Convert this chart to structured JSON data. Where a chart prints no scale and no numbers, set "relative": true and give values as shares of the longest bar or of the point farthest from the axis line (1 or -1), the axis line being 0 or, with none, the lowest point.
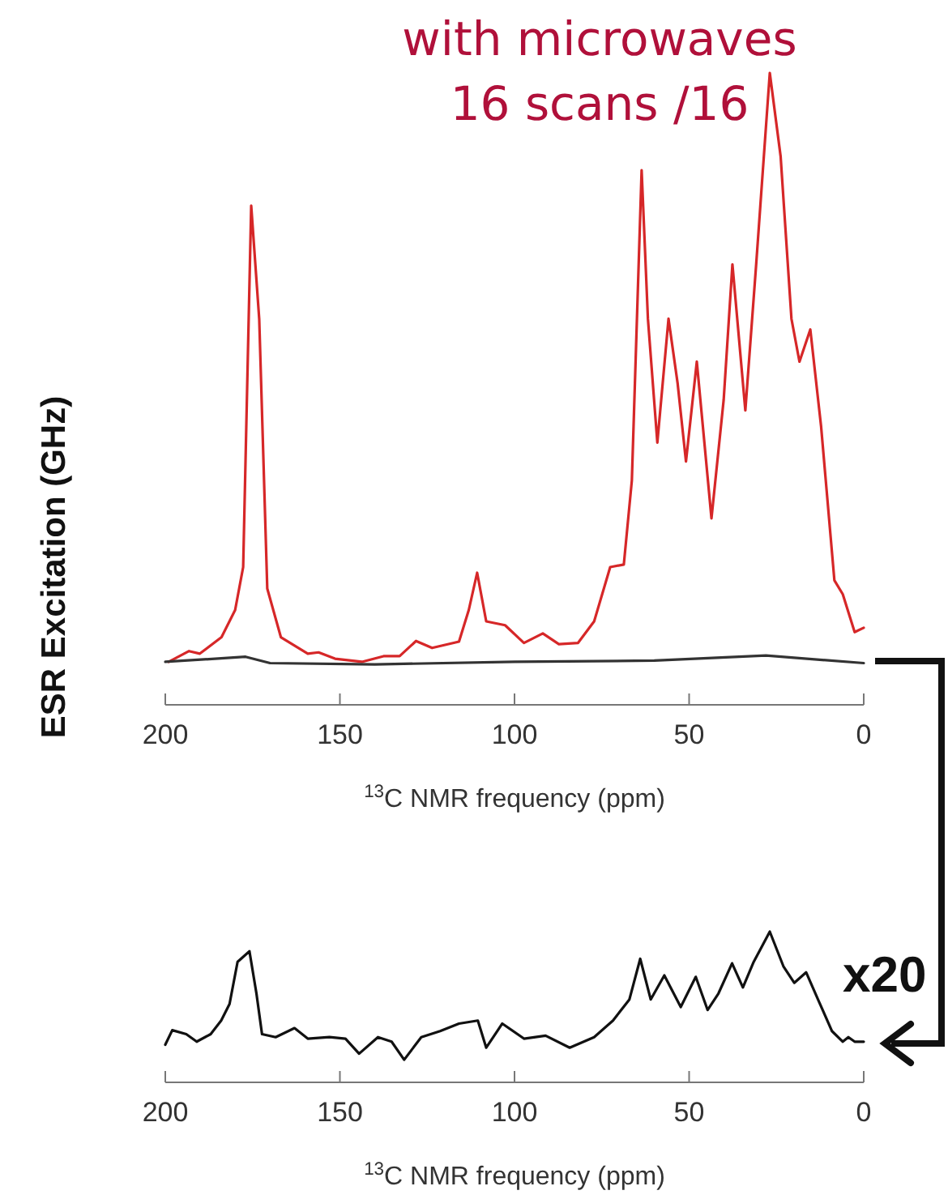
{
  "chart_data": [
    {
      "type": "line",
      "title": "with microwaves\n16 scans /16",
      "ylabel": "ESR Excitation (GHz)",
      "xlabel": "$^{13}$C NMR frequency  (ppm)",
      "relative": true,
      "xlim": [
        200,
        0
      ],
      "xticks": [
        200,
        150,
        100,
        50,
        0
      ],
      "series": [
        {
          "color": "#d62728",
          "x": [
            199,
            193.2,
            190.1,
            183.9,
            180,
            177.7,
            175.4,
            173.1,
            170.8,
            166.9,
            159.2,
            156.1,
            151.4,
            143.7,
            137.5,
            132.9,
            128.2,
            123.6,
            115.9,
            113.1,
            110.7,
            108.1,
            102.7,
            97.3,
            91.9,
            87.3,
            81.8,
            77.2,
            72.6,
            68.7,
            66.4,
            63.6,
            61.8,
            59.1,
            55.9,
            53.3,
            50.9,
            47.8,
            43.6,
            40.1,
            37.6,
            33.9,
            30.8,
            26.9,
            23.8,
            20.7,
            18.4,
            15.3,
            12.2,
            8.4,
            6,
            2.6,
            0
          ],
          "values": [
            0.068,
            0.085,
            0.081,
            0.107,
            0.15,
            0.218,
            0.79,
            0.61,
            0.184,
            0.107,
            0.081,
            0.083,
            0.073,
            0.068,
            0.077,
            0.077,
            0.101,
            0.09,
            0.1,
            0.15,
            0.209,
            0.132,
            0.126,
            0.098,
            0.113,
            0.096,
            0.098,
            0.132,
            0.218,
            0.222,
            0.355,
            0.846,
            0.611,
            0.415,
            0.611,
            0.509,
            0.385,
            0.543,
            0.295,
            0.483,
            0.697,
            0.466,
            0.697,
            1,
            0.868,
            0.611,
            0.543,
            0.594,
            0.44,
            0.197,
            0.175,
            0.115,
            0.122
          ]
        },
        {
          "color": "#333333",
          "x": [
            200,
            177,
            170,
            140,
            100,
            60,
            28,
            0
          ],
          "values": [
            0.068,
            0.076,
            0.066,
            0.064,
            0.068,
            0.07,
            0.078,
            0.066
          ]
        }
      ]
    },
    {
      "type": "line",
      "xlabel": "$^{13}$C NMR frequency  (ppm)",
      "relative": true,
      "xlim": [
        200,
        0
      ],
      "xticks": [
        200,
        150,
        100,
        50,
        0
      ],
      "annotations": [
        "x20"
      ],
      "series": [
        {
          "color": "#111111",
          "x": [
            200,
            198,
            194,
            191,
            187,
            184,
            181.6,
            179.3,
            175.9,
            173.9,
            172.3,
            168.4,
            163,
            159.2,
            153,
            148.4,
            144.5,
            139.1,
            135.2,
            131.6,
            126.7,
            121.3,
            115.9,
            110.5,
            108.1,
            103.5,
            97.3,
            91.1,
            84.2,
            77.2,
            71.8,
            67.1,
            64,
            61,
            57.1,
            52.4,
            48.1,
            44.7,
            41.6,
            37.7,
            34.6,
            31.5,
            26.9,
            23,
            19.9,
            16.5,
            12.9,
            9.1,
            6,
            4.4,
            2.6,
            0
          ],
          "values": [
            0.25,
            0.346,
            0.32,
            0.27,
            0.32,
            0.41,
            0.52,
            0.8,
            0.87,
            0.59,
            0.32,
            0.3,
            0.36,
            0.29,
            0.3,
            0.29,
            0.19,
            0.3,
            0.27,
            0.15,
            0.3,
            0.34,
            0.39,
            0.41,
            0.23,
            0.39,
            0.29,
            0.31,
            0.23,
            0.3,
            0.41,
            0.55,
            0.82,
            0.55,
            0.71,
            0.5,
            0.7,
            0.48,
            0.59,
            0.79,
            0.63,
            0.8,
            1,
            0.77,
            0.66,
            0.73,
            0.54,
            0.34,
            0.27,
            0.3,
            0.27,
            0.27
          ]
        }
      ]
    }
  ]
}
